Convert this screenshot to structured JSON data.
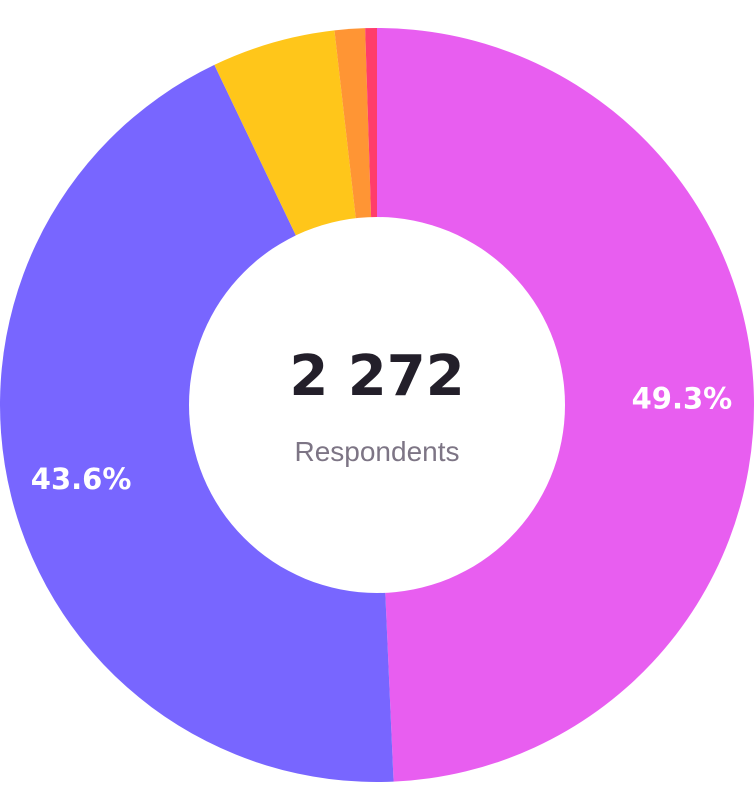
{
  "chart_data": {
    "type": "pie",
    "variant": "donut",
    "center": {
      "value": "2 272",
      "caption": "Respondents"
    },
    "slices": [
      {
        "value": 49.3,
        "label": "49.3%",
        "color": "#e85ef0"
      },
      {
        "value": 43.6,
        "label": "43.6%",
        "color": "#7866ff"
      },
      {
        "value": 5.3,
        "label": "",
        "color": "#ffc61a"
      },
      {
        "value": 1.3,
        "label": "",
        "color": "#ff9534"
      },
      {
        "value": 0.5,
        "label": "",
        "color": "#ff3d6b"
      }
    ],
    "legend": "none"
  }
}
